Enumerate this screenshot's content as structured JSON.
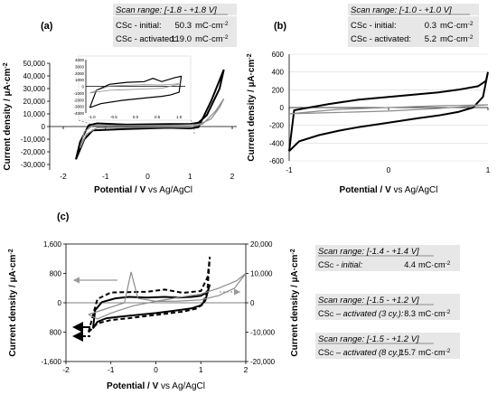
{
  "chart_data": [
    {
      "panel": "(a)",
      "type": "line",
      "scan_box": {
        "range": "Scan range: [-1.8 - +1.8 V]",
        "initial": {
          "label": "CSc - initial:",
          "value": "50.3",
          "unit": "mC·cm-2"
        },
        "activated": {
          "label": "CSc - activated:",
          "value": "119.0",
          "unit": "mC·cm-2"
        }
      },
      "xlabel_main": "Potential / V",
      "xlabel_ref": "vs Ag/AgCl",
      "ylabel": "Current density / µA·cm-2",
      "xlim": [
        -2,
        2
      ],
      "ylim": [
        -30000,
        50000
      ],
      "xticks": [
        "-2",
        "-1",
        "0",
        "1",
        "2"
      ],
      "yticks": [
        "50,000",
        "40,000",
        "30,000",
        "20,000",
        "10,000",
        "0",
        "-10,000",
        "-20,000",
        "-30,000"
      ],
      "inset": {
        "xticks": [
          "-1.0",
          "-0.5",
          "0.0",
          "0.5",
          "1.0"
        ],
        "yticks": [
          "4000",
          "3000",
          "2000",
          "1000",
          "0",
          "-1000",
          "-2000",
          "-3000",
          "-4000"
        ],
        "xlim": [
          -1.1,
          1.1
        ],
        "ylim": [
          -4000,
          4000
        ]
      },
      "series": [
        {
          "style": "black",
          "x": [
            -1.7,
            -1.5,
            -1.3,
            -0.5,
            0.5,
            1.0,
            1.2,
            1.5,
            1.8,
            1.7,
            1.4,
            1.2,
            1.0,
            0.5,
            -0.5,
            -1.2,
            -1.4,
            -1.6,
            -1.7
          ],
          "y": [
            -26000,
            -10000,
            -3000,
            -2000,
            -1000,
            -1500,
            -500,
            20000,
            45000,
            30000,
            9000,
            3000,
            2000,
            2000,
            1500,
            2500,
            1000,
            -12000,
            -26000
          ]
        },
        {
          "style": "gray",
          "x": [
            -1.6,
            -1.45,
            -1.2,
            -0.5,
            0.5,
            1.0,
            1.3,
            1.6,
            1.8,
            1.7,
            1.5,
            1.2,
            0.5,
            -0.5,
            -1.3,
            -1.5,
            -1.6
          ],
          "y": [
            -17000,
            -6000,
            -1000,
            -800,
            -500,
            -700,
            2000,
            12000,
            22000,
            15000,
            6000,
            1500,
            1000,
            800,
            800,
            -4000,
            -17000
          ]
        }
      ],
      "inset_series": [
        {
          "style": "black",
          "x": [
            -1.05,
            -0.8,
            -0.3,
            0.0,
            0.3,
            0.6,
            0.8,
            1.0,
            1.05,
            0.9,
            0.6,
            0.4,
            0.2,
            -0.2,
            -0.6,
            -0.9,
            -1.05
          ],
          "y": [
            -3200,
            -2600,
            -2100,
            -1900,
            -1700,
            -1500,
            -1300,
            -900,
            1500,
            1300,
            700,
            1200,
            700,
            600,
            300,
            -600,
            -3200
          ]
        },
        {
          "style": "gray",
          "x": [
            -1.05,
            -0.6,
            -0.2,
            0.2,
            0.6,
            1.05,
            0.6,
            0.2,
            -0.2,
            -0.6,
            -1.05
          ],
          "y": [
            -1000,
            -600,
            -500,
            -400,
            -300,
            400,
            200,
            250,
            150,
            50,
            -1000
          ]
        }
      ]
    },
    {
      "panel": "(b)",
      "type": "line",
      "scan_box": {
        "range": "Scan range: [-1.0 - +1.0 V]",
        "initial": {
          "label": "CSc - initial:",
          "value": "0.3",
          "unit": "mC·cm-2"
        },
        "activated": {
          "label": "CSc - activated:",
          "value": "5.2",
          "unit": "mC·cm-2"
        }
      },
      "xlabel_main": "Potential / V",
      "xlabel_ref": "vs Ag/AgCl",
      "ylabel": "Current density / µA·cm-2",
      "xlim": [
        -1,
        1
      ],
      "ylim": [
        -600,
        600
      ],
      "xticks": [
        "-1",
        "0",
        "1"
      ],
      "yticks": [
        "600",
        "500",
        "400",
        "300",
        "200",
        "100",
        "0",
        "-100",
        "-200",
        "-300",
        "-400",
        "-500",
        "-600"
      ],
      "series": [
        {
          "style": "black",
          "x": [
            -1.0,
            -0.9,
            -0.7,
            -0.5,
            -0.3,
            0.0,
            0.3,
            0.5,
            0.7,
            0.85,
            0.95,
            1.0,
            0.98,
            0.9,
            0.7,
            0.5,
            0.3,
            0.0,
            -0.3,
            -0.6,
            -0.8,
            -0.95,
            -1.0
          ],
          "y": [
            -490,
            -380,
            -310,
            -260,
            -220,
            -170,
            -120,
            -90,
            -50,
            0,
            120,
            400,
            300,
            240,
            200,
            170,
            150,
            120,
            90,
            40,
            0,
            -30,
            -490
          ]
        },
        {
          "style": "gray",
          "x": [
            -1.0,
            -0.5,
            0.0,
            0.5,
            1.0,
            0.5,
            0.0,
            -0.5,
            -1.0
          ],
          "y": [
            -70,
            -55,
            -40,
            -10,
            30,
            20,
            0,
            -20,
            -70
          ]
        }
      ]
    },
    {
      "panel": "(c)",
      "type": "line",
      "xlabel_main": "Potential / V",
      "xlabel_ref": "vs Ag/AgCl",
      "ylabel": "Current density / µA·cm-2",
      "xlim": [
        -2,
        2
      ],
      "ylim_left": [
        -1600,
        1600
      ],
      "ylim_right": [
        -20000,
        20000
      ],
      "xticks": [
        "-2",
        "-1",
        "0",
        "1",
        "2"
      ],
      "yticks_left": [
        "1,600",
        "800",
        "0",
        "800",
        "-1,600"
      ],
      "yticks_right": [
        "20,000",
        "10,000",
        "0",
        "-10,000",
        "-20,000"
      ],
      "series": [
        {
          "style": "black",
          "axis": "left",
          "x": [
            -1.4,
            -1.3,
            -1.1,
            -0.8,
            -0.4,
            0.0,
            0.4,
            0.8,
            1.0,
            1.1,
            1.2,
            1.15,
            1.0,
            0.8,
            0.5,
            0.2,
            -0.2,
            -0.6,
            -0.9,
            -1.2,
            -1.35,
            -1.4
          ],
          "y": [
            -700,
            -520,
            -420,
            -380,
            -330,
            -280,
            -220,
            -150,
            -70,
            60,
            500,
            300,
            190,
            160,
            140,
            160,
            140,
            160,
            120,
            20,
            -200,
            -700
          ]
        },
        {
          "style": "black-dashed",
          "axis": "left",
          "x": [
            -1.5,
            -1.3,
            -1.0,
            -0.6,
            -0.2,
            0.2,
            0.6,
            0.9,
            1.05,
            1.15,
            1.2,
            1.15,
            1.0,
            0.6,
            0.2,
            -0.2,
            -0.6,
            -1.0,
            -1.3,
            -1.5
          ],
          "y": [
            -800,
            -560,
            -470,
            -420,
            -360,
            -300,
            -240,
            -160,
            -40,
            400,
            1250,
            700,
            320,
            270,
            360,
            300,
            290,
            280,
            100,
            -800
          ]
        },
        {
          "style": "gray",
          "axis": "right",
          "x": [
            -1.5,
            -1.1,
            -0.7,
            -0.55,
            -0.4,
            0.0,
            0.5,
            1.0,
            1.4,
            1.75,
            2.0,
            1.8,
            1.4,
            1.0,
            0.5,
            0.0,
            -0.5,
            -1.0,
            -1.3,
            -1.5
          ],
          "y": [
            -4000,
            -2000,
            0,
            10500,
            1500,
            500,
            600,
            1000,
            2500,
            5000,
            10000,
            7500,
            5000,
            3000,
            1800,
            500,
            -1000,
            -3500,
            -5500,
            -4000
          ]
        }
      ],
      "annotations": [
        {
          "box": "Scan range: [-1.4 - +1.4 V]",
          "lines": [
            {
              "label": "CSc - initial:",
              "value": "4.4",
              "unit": "mC·cm-2"
            }
          ]
        },
        {
          "box": "Scan range: [-1.5 - +1.2 V]",
          "lines": [
            {
              "label": "CSc – activated (3 cy.):",
              "value": "8.3",
              "unit": "mC·cm-2"
            }
          ]
        },
        {
          "box": "Scan range: [-1.5 - +1.2 V]",
          "lines": [
            {
              "label": "CSc – activated (8 cy.):",
              "value": "15.7",
              "unit": "mC·cm-2"
            }
          ]
        }
      ]
    }
  ],
  "colors": {
    "black": "#000000",
    "gray": "#8c8c8c",
    "box": "#e7e7e7",
    "grid": "#d9d9d9"
  }
}
